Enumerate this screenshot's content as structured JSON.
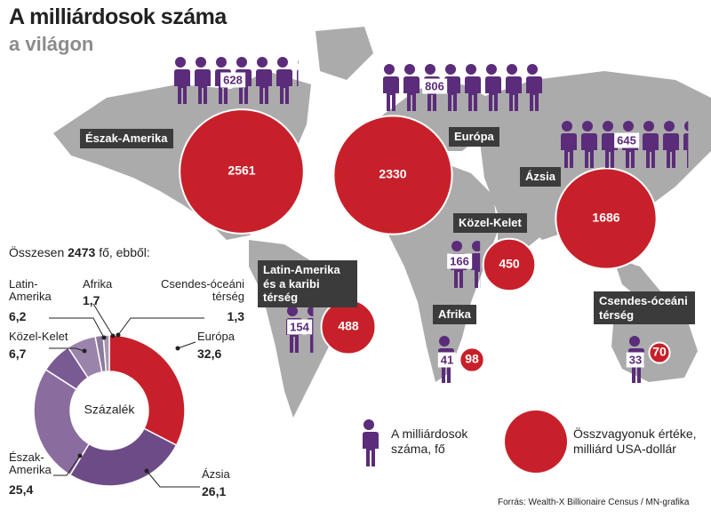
{
  "chart_data": [
    {
      "type": "bubble",
      "title": "A milliárdosok száma",
      "subtitle": "a világon",
      "categories": [
        "Észak-Amerika",
        "Európa",
        "Ázsia",
        "Közel-Kelet",
        "Latin-Amerika és a karibi térség",
        "Afrika",
        "Csendes-óceáni térség"
      ],
      "series": [
        {
          "name": "A milliárdosok száma, fő",
          "color": "#5b2c7a",
          "values": [
            628,
            806,
            645,
            166,
            154,
            41,
            33
          ]
        },
        {
          "name": "Összvagyonuk értéke, milliárd USA-dollár",
          "color": "#c8202a",
          "values": [
            2561,
            2330,
            1686,
            450,
            488,
            98,
            70
          ]
        }
      ],
      "source": "Forrás: Wealth-X Billionaire Census / MN-grafika"
    },
    {
      "type": "pie",
      "total_prefix": "Összesen",
      "total": 2473,
      "total_suffix": "fő, ebből:",
      "center_label": "Százalék",
      "categories": [
        "Európa",
        "Ázsia",
        "Észak-Amerika",
        "Közel-Kelet",
        "Latin-Amerika",
        "Afrika",
        "Csendes-óceáni térség"
      ],
      "values": [
        32.6,
        26.1,
        25.4,
        6.7,
        6.2,
        1.7,
        1.3
      ],
      "value_labels": [
        "32,6",
        "26,1",
        "25,4",
        "6,7",
        "6,2",
        "1,7",
        "1,3"
      ],
      "colors": [
        "#c8202a",
        "#6d4b87",
        "#8a6c9e",
        "#7a5a92",
        "#9b84ab",
        "#8d7a9c",
        "#a596b2"
      ]
    }
  ]
}
